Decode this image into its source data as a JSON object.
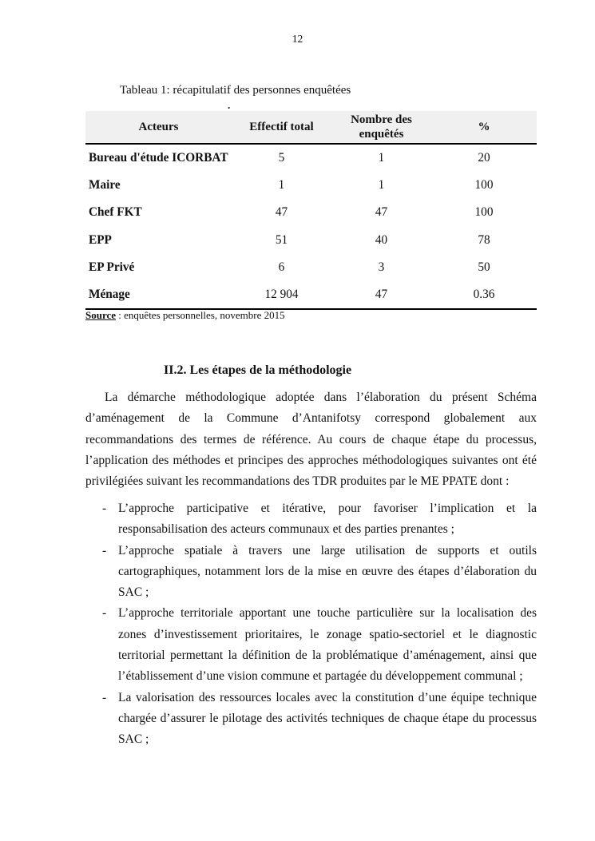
{
  "page": {
    "number": "12"
  },
  "table_caption": "Tableau 1: récapitulatif des personnes enquêtées",
  "table": {
    "stray_mark": ".",
    "columns": [
      "Acteurs",
      "Effectif total",
      "Nombre des enquêtés",
      "%"
    ],
    "rows": [
      {
        "acteur": "Bureau d'étude ICORBAT",
        "effectif": "5",
        "enquetes": "1",
        "pct": "20"
      },
      {
        "acteur": "Maire",
        "effectif": "1",
        "enquetes": "1",
        "pct": "100"
      },
      {
        "acteur": "Chef FKT",
        "effectif": "47",
        "enquetes": "47",
        "pct": "100"
      },
      {
        "acteur": "EPP",
        "effectif": "51",
        "enquetes": "40",
        "pct": "78"
      },
      {
        "acteur": "EP Privé",
        "effectif": "6",
        "enquetes": "3",
        "pct": "50"
      },
      {
        "acteur": "Ménage",
        "effectif": "12 904",
        "enquetes": "47",
        "pct": "0.36"
      }
    ],
    "source_label": "Source",
    "source_text": " : enquêtes personnelles, novembre 2015"
  },
  "section": {
    "heading": "II.2. Les étapes de la méthodologie",
    "paragraph": "La démarche méthodologique adoptée dans l’élaboration du présent Schéma d’aménagement de la Commune d’Antanifotsy correspond globalement aux recommandations des termes de référence. Au cours de chaque étape du processus, l’application des méthodes et principes des approches méthodologiques suivantes ont été privilégiées suivant les recommandations des TDR produites par le ME PPATE dont :",
    "bullet_marker": "-",
    "bullets": [
      "L’approche participative et itérative, pour favoriser l’implication et la responsabilisation des acteurs communaux et des parties prenantes ;",
      "L’approche spatiale à travers une large utilisation de supports et outils cartographiques, notamment lors de la mise en œuvre des étapes d’élaboration du SAC ;",
      "L’approche territoriale apportant une touche particulière sur la localisation des zones d’investissement prioritaires, le zonage spatio-sectoriel et le diagnostic territorial permettant la définition de la problématique d’aménagement, ainsi que l’établissement d’une vision commune et partagée du développement communal ;",
      "La valorisation des ressources locales avec la constitution d’une équipe technique chargée d’assurer le pilotage des activités techniques de chaque étape du processus SAC ;"
    ]
  }
}
